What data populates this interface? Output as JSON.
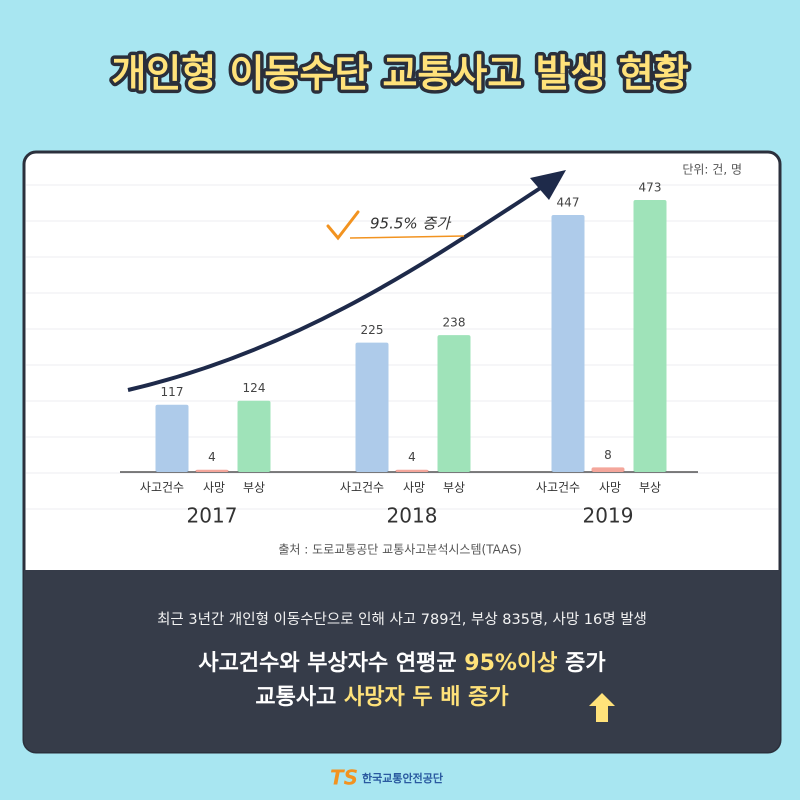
{
  "title": "개인형 이동수단 교통사고 발생 현황",
  "chart_data": {
    "type": "bar",
    "unit": "단위: 건, 명",
    "annotation": "95.5% 증가",
    "categories": [
      "2017",
      "2018",
      "2019"
    ],
    "series": [
      {
        "name": "사고건수",
        "color": "#aecbea",
        "values": [
          117,
          225,
          447
        ]
      },
      {
        "name": "사망",
        "color": "#f4a69b",
        "values": [
          4,
          4,
          8
        ]
      },
      {
        "name": "부상",
        "color": "#9fe3b9",
        "values": [
          124,
          238,
          473
        ]
      }
    ],
    "source": "출처 : 도로교통공단 교통사고분석시스템(TAAS)"
  },
  "summary": "최근 3년간 개인형 이동수단으로 인해 사고 789건, 부상 835명, 사망 16명 발생",
  "headline": {
    "line1": [
      "사고건수와 부상자수 연평균",
      "95%이상",
      "증가"
    ],
    "line2": [
      "교통사고",
      "사망자 두 배 증가"
    ]
  },
  "logo": {
    "mark": "TS",
    "name": "한국교통안전공단"
  }
}
